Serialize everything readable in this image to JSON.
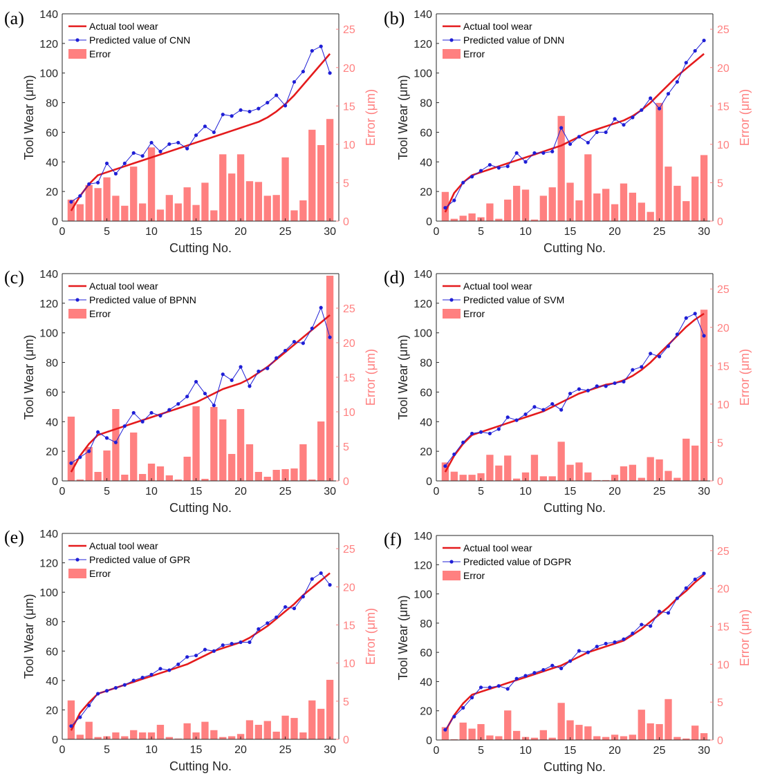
{
  "colors": {
    "actual": "#e41a1c",
    "predicted": "#1f1fd6",
    "error": "#ff8080",
    "axis": "#262626"
  },
  "chart_data": [
    {
      "type": "line+bar",
      "panel_label": "(a)",
      "xlabel": "Cutting No.",
      "ylabel": "Tool Wear (μm)",
      "ylabel_right": "Error (μm)",
      "xlim": [
        0,
        31
      ],
      "ylim": [
        0,
        140
      ],
      "ylim_right": [
        0,
        27
      ],
      "xticks": [
        0,
        5,
        10,
        15,
        20,
        25,
        30
      ],
      "yticks": [
        0,
        20,
        40,
        60,
        80,
        100,
        120,
        140
      ],
      "yticks_right": [
        0,
        5,
        10,
        15,
        20,
        25
      ],
      "legend_position": "top-left",
      "x": [
        1,
        2,
        3,
        4,
        5,
        6,
        7,
        8,
        9,
        10,
        11,
        12,
        13,
        14,
        15,
        16,
        17,
        18,
        19,
        20,
        21,
        22,
        23,
        24,
        25,
        26,
        27,
        28,
        29,
        30
      ],
      "series": [
        {
          "name": "Actual tool wear",
          "style": "line",
          "values": [
            7,
            17,
            25,
            31,
            33,
            35,
            37,
            39,
            41,
            43,
            45,
            47,
            49,
            51,
            53,
            55,
            57,
            59,
            61,
            63,
            65,
            67,
            70,
            74,
            79,
            85,
            92,
            99,
            106,
            113
          ]
        },
        {
          "name": "Predicted value of CNN",
          "style": "line-marker",
          "values": [
            13,
            17,
            25,
            26,
            39,
            32,
            39,
            46,
            44,
            53,
            47,
            52,
            53,
            49,
            58,
            64,
            60,
            72,
            71,
            75,
            74,
            76,
            80,
            85,
            78,
            94,
            101,
            115,
            118,
            100
          ]
        },
        {
          "name": "Error",
          "style": "bar",
          "axis": "right",
          "values": [
            2.8,
            2.2,
            4.7,
            4.3,
            5.7,
            3.3,
            2.0,
            7.1,
            2.3,
            9.6,
            1.5,
            3.4,
            2.3,
            4.4,
            2.1,
            5.0,
            1.4,
            8.7,
            6.2,
            8.7,
            5.2,
            5.1,
            3.3,
            3.4,
            8.3,
            1.4,
            2.7,
            11.9,
            9.9,
            13.3
          ]
        }
      ]
    },
    {
      "type": "line+bar",
      "panel_label": "(b)",
      "xlabel": "Cutting No.",
      "ylabel": "Tool Wear (μm)",
      "ylabel_right": "Error (μm)",
      "xlim": [
        0,
        31
      ],
      "ylim": [
        0,
        140
      ],
      "ylim_right": [
        0,
        27
      ],
      "xticks": [
        0,
        5,
        10,
        15,
        20,
        25,
        30
      ],
      "yticks": [
        0,
        20,
        40,
        60,
        80,
        100,
        120,
        140
      ],
      "yticks_right": [
        0,
        5,
        10,
        15,
        20,
        25
      ],
      "legend_position": "top-left",
      "x": [
        1,
        2,
        3,
        4,
        5,
        6,
        7,
        8,
        9,
        10,
        11,
        12,
        13,
        14,
        15,
        16,
        17,
        18,
        19,
        20,
        21,
        22,
        23,
        24,
        25,
        26,
        27,
        28,
        29,
        30
      ],
      "series": [
        {
          "name": "Actual tool wear",
          "style": "line",
          "values": [
            6,
            19,
            26,
            31,
            33,
            35,
            37,
            39,
            41,
            43,
            45,
            47,
            49,
            51,
            54,
            57,
            60,
            62,
            64,
            66,
            68,
            71,
            75,
            80,
            86,
            92,
            98,
            103,
            108,
            113
          ]
        },
        {
          "name": "Predicted value of DNN",
          "style": "line-marker",
          "values": [
            9,
            14,
            26,
            30,
            34,
            38,
            36,
            37,
            46,
            40,
            46,
            46,
            47,
            63,
            52,
            57,
            53,
            60,
            60,
            69,
            65,
            70,
            75,
            83,
            76,
            86,
            94,
            107,
            115,
            122
          ]
        },
        {
          "name": "Error",
          "style": "bar",
          "axis": "right",
          "values": [
            3.8,
            0.3,
            0.7,
            1.0,
            0.5,
            2.3,
            0.3,
            2.8,
            4.6,
            4.1,
            0.2,
            3.3,
            4.4,
            13.7,
            5.0,
            2.7,
            8.7,
            3.6,
            4.2,
            2.2,
            4.9,
            3.7,
            2.4,
            1.2,
            15.4,
            7.1,
            4.6,
            2.6,
            5.8,
            8.6
          ]
        }
      ]
    },
    {
      "type": "line+bar",
      "panel_label": "(c)",
      "xlabel": "Cutting No.",
      "ylabel": "Tool Wear (μm)",
      "ylabel_right": "Error (μm)",
      "xlim": [
        0,
        31
      ],
      "ylim": [
        0,
        140
      ],
      "ylim_right": [
        0,
        30
      ],
      "xticks": [
        0,
        5,
        10,
        15,
        20,
        25,
        30
      ],
      "yticks": [
        0,
        20,
        40,
        60,
        80,
        100,
        120,
        140
      ],
      "yticks_right": [
        0,
        5,
        10,
        15,
        20,
        25
      ],
      "legend_position": "top-left",
      "x": [
        1,
        2,
        3,
        4,
        5,
        6,
        7,
        8,
        9,
        10,
        11,
        12,
        13,
        14,
        15,
        16,
        17,
        18,
        19,
        20,
        21,
        22,
        23,
        24,
        25,
        26,
        27,
        28,
        29,
        30
      ],
      "series": [
        {
          "name": "Actual tool wear",
          "style": "line",
          "values": [
            6,
            17,
            25,
            31,
            33,
            35,
            37,
            39,
            41,
            43,
            45,
            47,
            49,
            51,
            53,
            56,
            59,
            62,
            64,
            66,
            69,
            73,
            77,
            82,
            87,
            92,
            97,
            102,
            107,
            112
          ]
        },
        {
          "name": "Predicted value of BPNN",
          "style": "line-marker",
          "values": [
            12,
            16,
            20,
            33,
            29,
            26,
            37,
            46,
            40,
            46,
            44,
            48,
            52,
            57,
            67,
            59,
            51,
            72,
            68,
            77,
            64,
            74,
            76,
            83,
            88,
            94,
            93,
            103,
            117,
            97
          ]
        },
        {
          "name": "Error",
          "style": "bar",
          "axis": "right",
          "values": [
            9.3,
            0.2,
            4.9,
            1.3,
            4.4,
            10.4,
            0.9,
            7.0,
            1.0,
            2.5,
            2.1,
            0.8,
            0.2,
            3.5,
            10.8,
            0.3,
            10.7,
            8.9,
            3.9,
            10.4,
            5.3,
            1.3,
            0.6,
            1.6,
            1.7,
            1.8,
            5.3,
            0.2,
            8.6,
            29.7
          ]
        }
      ]
    },
    {
      "type": "line+bar",
      "panel_label": "(d)",
      "xlabel": "Cutting No.",
      "ylabel": "Tool Wear (μm)",
      "ylabel_right": "Error (μm)",
      "xlim": [
        0,
        31
      ],
      "ylim": [
        0,
        140
      ],
      "ylim_right": [
        0,
        27
      ],
      "xticks": [
        0,
        5,
        10,
        15,
        20,
        25,
        30
      ],
      "yticks": [
        0,
        20,
        40,
        60,
        80,
        100,
        120,
        140
      ],
      "yticks_right": [
        0,
        5,
        10,
        15,
        20,
        25
      ],
      "legend_position": "top-left",
      "x": [
        1,
        2,
        3,
        4,
        5,
        6,
        7,
        8,
        9,
        10,
        11,
        12,
        13,
        14,
        15,
        16,
        17,
        18,
        19,
        20,
        21,
        22,
        23,
        24,
        25,
        26,
        27,
        28,
        29,
        30
      ],
      "series": [
        {
          "name": "Actual tool wear",
          "style": "line",
          "values": [
            6,
            17,
            25,
            31,
            33,
            35,
            37,
            39,
            41,
            43,
            45,
            47,
            50,
            53,
            56,
            59,
            61,
            63,
            65,
            66,
            68,
            71,
            75,
            80,
            86,
            92,
            98,
            104,
            109,
            113
          ]
        },
        {
          "name": "Predicted value of SVM",
          "style": "line-marker",
          "values": [
            10,
            18,
            26,
            32,
            33,
            32,
            35,
            43,
            41,
            45,
            50,
            48,
            52,
            48,
            59,
            62,
            61,
            64,
            64,
            66,
            67,
            75,
            77,
            86,
            84,
            91,
            99,
            110,
            113,
            98
          ]
        },
        {
          "name": "Error",
          "style": "bar",
          "axis": "right",
          "values": [
            2.4,
            1.2,
            0.8,
            0.8,
            1.0,
            3.4,
            2.0,
            3.3,
            0.3,
            1.1,
            3.4,
            0.6,
            0.6,
            5.1,
            2.1,
            2.4,
            1.1,
            0.1,
            0.1,
            0.8,
            1.9,
            2.1,
            0.4,
            3.1,
            2.8,
            1.3,
            0.4,
            5.5,
            4.6,
            22.3
          ]
        }
      ]
    },
    {
      "type": "line+bar",
      "panel_label": "(e)",
      "xlabel": "Cutting No.",
      "ylabel": "Tool Wear (μm)",
      "ylabel_right": "Error (μm)",
      "xlim": [
        0,
        31
      ],
      "ylim": [
        0,
        140
      ],
      "ylim_right": [
        0,
        27
      ],
      "xticks": [
        0,
        5,
        10,
        15,
        20,
        25,
        30
      ],
      "yticks": [
        0,
        20,
        40,
        60,
        80,
        100,
        120,
        140
      ],
      "yticks_right": [
        0,
        5,
        10,
        15,
        20,
        25
      ],
      "legend_position": "top-left",
      "x": [
        1,
        2,
        3,
        4,
        5,
        6,
        7,
        8,
        9,
        10,
        11,
        12,
        13,
        14,
        15,
        16,
        17,
        18,
        19,
        20,
        21,
        22,
        23,
        24,
        25,
        26,
        27,
        28,
        29,
        30
      ],
      "series": [
        {
          "name": "Actual tool wear",
          "style": "line",
          "values": [
            6,
            18,
            25,
            31,
            33,
            35,
            37,
            39,
            41,
            43,
            45,
            47,
            49,
            51,
            54,
            57,
            60,
            62,
            64,
            66,
            69,
            73,
            77,
            82,
            87,
            92,
            98,
            103,
            108,
            113
          ]
        },
        {
          "name": "Predicted value of GPR",
          "style": "line-marker",
          "values": [
            9,
            15,
            23,
            31,
            33,
            35,
            37,
            40,
            42,
            44,
            48,
            47,
            51,
            56,
            57,
            61,
            60,
            64,
            65,
            66,
            66,
            75,
            79,
            83,
            90,
            89,
            97,
            109,
            113,
            105
          ]
        },
        {
          "name": "Error",
          "style": "bar",
          "axis": "right",
          "values": [
            5.1,
            0.6,
            2.3,
            0.3,
            0.4,
            0.9,
            0.4,
            1.2,
            0.9,
            0.9,
            1.9,
            0.3,
            0.1,
            2.1,
            0.9,
            2.3,
            1.2,
            0.3,
            0.4,
            0.7,
            2.5,
            1.9,
            2.4,
            1.0,
            3.1,
            2.8,
            0.9,
            5.1,
            4.0,
            7.8
          ]
        }
      ]
    },
    {
      "type": "line+bar",
      "panel_label": "(f)",
      "xlabel": "Cutting No.",
      "ylabel": "Tool Wear (μm)",
      "ylabel_right": "Error (μm)",
      "xlim": [
        0,
        31
      ],
      "ylim": [
        0,
        140
      ],
      "ylim_right": [
        0,
        27
      ],
      "xticks": [
        0,
        5,
        10,
        15,
        20,
        25,
        30
      ],
      "yticks": [
        0,
        20,
        40,
        60,
        80,
        100,
        120,
        140
      ],
      "yticks_right": [
        0,
        5,
        10,
        15,
        20,
        25
      ],
      "legend_position": "top-left",
      "x": [
        1,
        2,
        3,
        4,
        5,
        6,
        7,
        8,
        9,
        10,
        11,
        12,
        13,
        14,
        15,
        16,
        17,
        18,
        19,
        20,
        21,
        22,
        23,
        24,
        25,
        26,
        27,
        28,
        29,
        30
      ],
      "series": [
        {
          "name": "Actual tool wear",
          "style": "line",
          "values": [
            6,
            17,
            25,
            31,
            33,
            35,
            37,
            39,
            41,
            43,
            45,
            47,
            49,
            51,
            54,
            57,
            60,
            62,
            64,
            66,
            68,
            72,
            76,
            81,
            86,
            91,
            97,
            102,
            108,
            113
          ]
        },
        {
          "name": "Predicted value of DGPR",
          "style": "line-marker",
          "values": [
            7,
            16,
            22,
            29,
            36,
            36,
            37,
            35,
            42,
            44,
            46,
            48,
            51,
            49,
            54,
            61,
            60,
            64,
            66,
            67,
            69,
            73,
            79,
            78,
            88,
            87,
            97,
            104,
            110,
            114
          ]
        },
        {
          "name": "Error",
          "style": "bar",
          "axis": "right",
          "values": [
            1.7,
            0.1,
            2.3,
            1.5,
            2.1,
            0.6,
            0.5,
            3.9,
            1.2,
            0.4,
            0.3,
            1.3,
            0.3,
            4.9,
            2.6,
            2.0,
            1.8,
            0.5,
            0.4,
            0.7,
            0.5,
            0.7,
            4.0,
            2.2,
            2.1,
            5.4,
            0.4,
            0.2,
            1.9,
            0.9
          ]
        }
      ]
    }
  ]
}
